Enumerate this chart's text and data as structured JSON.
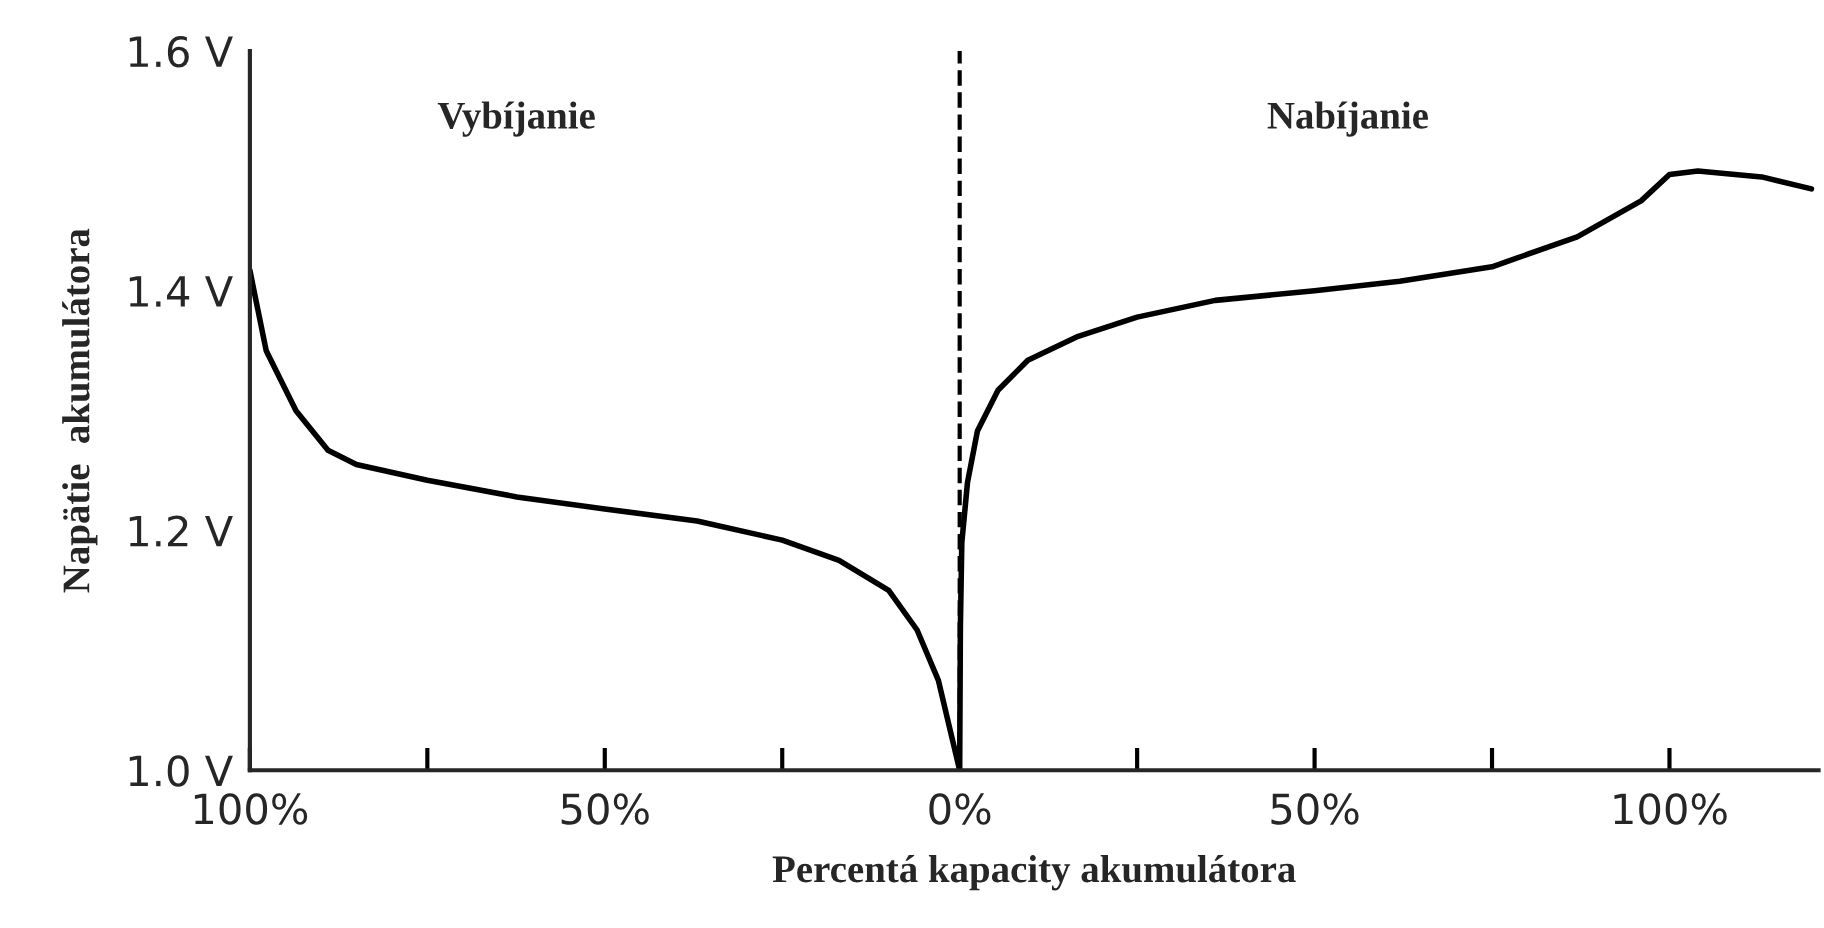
{
  "chart_data": {
    "type": "line",
    "xlabel": "Percentá kapacity akumulátora",
    "ylabel": "Napätie  akumulátora",
    "annotations": [
      "Vybíjanie",
      "Nabíjanie"
    ],
    "series": [
      {
        "color": "#000000",
        "x": [
          -100,
          -97.7,
          -93.5,
          -89,
          -85,
          -75,
          -62.4,
          -50,
          -37,
          -25,
          -17,
          -10,
          -6,
          -3,
          -1,
          0,
          0.1,
          0.3,
          1.1,
          2.5,
          5.4,
          9.6,
          16.7,
          25,
          36,
          50,
          62,
          75,
          87,
          96,
          100,
          104,
          113,
          120
        ],
        "values": [
          1.417,
          1.35,
          1.3,
          1.267,
          1.255,
          1.242,
          1.228,
          1.218,
          1.208,
          1.192,
          1.175,
          1.15,
          1.117,
          1.075,
          1.025,
          1.0,
          1.12,
          1.19,
          1.24,
          1.283,
          1.317,
          1.342,
          1.362,
          1.378,
          1.392,
          1.4,
          1.408,
          1.42,
          1.445,
          1.475,
          1.497,
          1.5,
          1.495,
          1.485
        ]
      }
    ],
    "ref_lines": [
      {
        "axis": "x",
        "value": 0,
        "color": "#000000",
        "line_style": "dashed"
      }
    ],
    "xlim": [
      -100,
      121
    ],
    "xticks": [
      {
        "value": -100,
        "label": "100%"
      },
      {
        "value": -75,
        "label": null
      },
      {
        "value": -50,
        "label": "50%"
      },
      {
        "value": -25,
        "label": null
      },
      {
        "value": 0,
        "label": "0%"
      },
      {
        "value": 25,
        "label": null
      },
      {
        "value": 50,
        "label": "50%"
      },
      {
        "value": 75,
        "label": null
      },
      {
        "value": 100,
        "label": "100%"
      }
    ],
    "ylim": [
      1.0,
      1.6
    ],
    "yticks": [
      {
        "value": 1.0,
        "label": "1.0 V"
      },
      {
        "value": 1.2,
        "label": "1.2 V"
      },
      {
        "value": 1.4,
        "label": "1.4 V"
      },
      {
        "value": 1.6,
        "label": "1.6 V"
      }
    ],
    "grid": false,
    "legend": false,
    "marker": "none",
    "line_style": "solid"
  }
}
